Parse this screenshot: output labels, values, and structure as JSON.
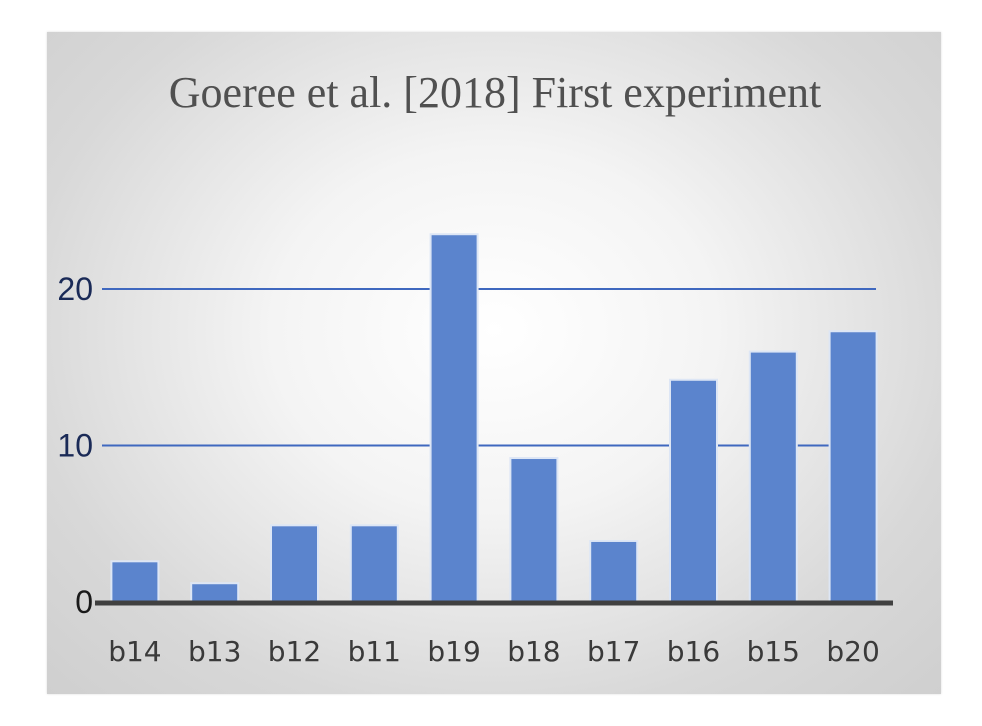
{
  "chart_data": {
    "type": "bar",
    "title": "Goeree et al. [2018] First experiment",
    "xlabel": "",
    "ylabel": "",
    "categories": [
      "b14",
      "b13",
      "b12",
      "b11",
      "b19",
      "b18",
      "b17",
      "b16",
      "b15",
      "b20"
    ],
    "values": [
      2.6,
      1.2,
      4.9,
      4.9,
      23.5,
      9.2,
      3.9,
      14.2,
      16.0,
      17.3
    ],
    "ylim": [
      0,
      25
    ],
    "yticks": [
      0,
      10,
      20
    ],
    "grid": true,
    "legend": "none",
    "colors": {
      "bar": "#5b84cd",
      "bar_edge": "#dde6f5",
      "gridline": "#3f68bf",
      "axis": "#404040"
    }
  }
}
